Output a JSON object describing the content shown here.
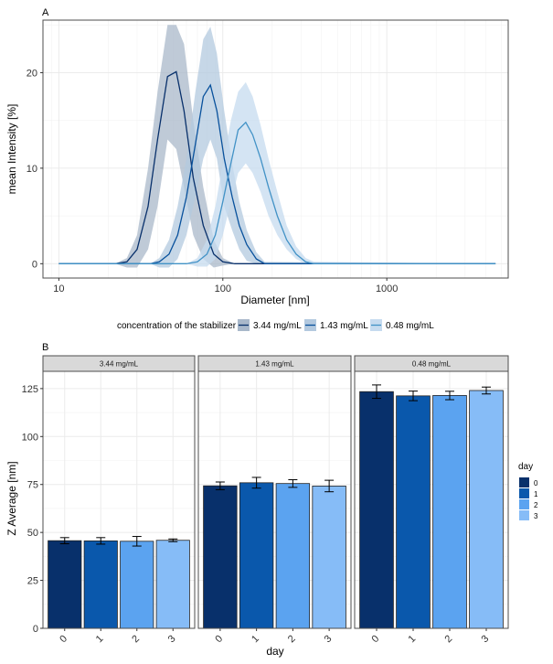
{
  "colors": {
    "dark": "#08306b",
    "mid": "#08519c",
    "light": "#4292c6",
    "lighter": "#6baed6",
    "lightest": "#9ecae1",
    "panel_border": "#4d4d4d",
    "grid": "#ebebeb",
    "strip_bg": "#d9d9d9"
  },
  "chart_data": [
    {
      "panel": "A",
      "type": "line",
      "x_scale": "log",
      "xlabel": "Diameter [nm]",
      "ylabel": "mean Intensity [%]",
      "xlim": [
        8,
        5500
      ],
      "ylim": [
        -1.5,
        25.5
      ],
      "x_ticks": [
        10,
        100,
        1000
      ],
      "x_tick_labels": [
        "10",
        "100",
        "1000"
      ],
      "y_ticks": [
        0,
        10,
        20
      ],
      "y_tick_labels": [
        "0",
        "10",
        "20"
      ],
      "grid": true,
      "legend_title": "concentration of the stabilizer C",
      "legend_position": "bottom",
      "series": [
        {
          "name": "3.44 mg/mL",
          "color": "#08306b",
          "fill": "#a9b8ca",
          "x": [
            10,
            22,
            26,
            30,
            35,
            40,
            46,
            52,
            58,
            66,
            76,
            88,
            100,
            118,
            4600
          ],
          "y": [
            0,
            0,
            0.2,
            1.5,
            6.0,
            13.0,
            19.6,
            20.1,
            16.0,
            9.0,
            4.0,
            1.0,
            0.2,
            0,
            0
          ],
          "lower": [
            0,
            0,
            -0.4,
            -0.4,
            1.5,
            6.0,
            13.0,
            12.0,
            8.0,
            3.0,
            0.5,
            -0.4,
            -0.2,
            0,
            0
          ],
          "upper": [
            0,
            0,
            0.6,
            3.0,
            10.0,
            18.0,
            25.0,
            25.0,
            23.0,
            15.0,
            8.0,
            2.5,
            0.6,
            0,
            0
          ]
        },
        {
          "name": "1.43 mg/mL",
          "color": "#08519c",
          "fill": "#b3c9df",
          "x": [
            10,
            36,
            41,
            47,
            53,
            60,
            68,
            76,
            84,
            92,
            102,
            114,
            126,
            140,
            160,
            180,
            4600
          ],
          "y": [
            0,
            0,
            0.2,
            1.0,
            3.0,
            7.0,
            12.5,
            17.5,
            18.7,
            16.0,
            11.0,
            7.0,
            4.0,
            2.0,
            0.5,
            0,
            0
          ],
          "lower": [
            0,
            0,
            -0.4,
            -0.4,
            0.5,
            3.0,
            7.0,
            11.0,
            13.0,
            11.0,
            6.0,
            3.5,
            1.5,
            0.3,
            0,
            0,
            0
          ],
          "upper": [
            0,
            0,
            0.6,
            2.5,
            6.0,
            11.0,
            18.0,
            23.5,
            24.8,
            22.0,
            16.0,
            10.5,
            6.5,
            3.5,
            1.2,
            0.2,
            0
          ]
        },
        {
          "name": "0.48 mg/mL",
          "color": "#4292c6",
          "fill": "#c6dbef",
          "x": [
            10,
            60,
            70,
            80,
            90,
            100,
            112,
            124,
            138,
            152,
            170,
            190,
            215,
            245,
            280,
            320,
            360,
            4600
          ],
          "y": [
            0,
            0,
            0.2,
            1.0,
            3.0,
            6.5,
            10.5,
            14.0,
            14.8,
            13.5,
            11.0,
            8.0,
            5.0,
            2.5,
            1.0,
            0.2,
            0,
            0
          ],
          "lower": [
            0,
            0,
            -0.3,
            -0.3,
            0.5,
            3.0,
            6.5,
            9.5,
            10.5,
            9.5,
            7.5,
            5.0,
            3.0,
            1.5,
            0.5,
            0,
            0,
            0
          ],
          "upper": [
            0,
            0,
            0.6,
            2.5,
            6.0,
            10.5,
            15.0,
            18.0,
            19.0,
            17.5,
            14.5,
            11.0,
            7.5,
            4.0,
            1.8,
            0.6,
            0.2,
            0
          ]
        }
      ]
    },
    {
      "panel": "B",
      "type": "bar",
      "xlabel": "day",
      "ylabel": "Z Average [nm]",
      "ylim": [
        0,
        134
      ],
      "y_ticks": [
        0,
        25,
        50,
        75,
        100,
        125
      ],
      "y_tick_labels": [
        "0",
        "25",
        "50",
        "75",
        "100",
        "125"
      ],
      "categories": [
        "0",
        "1",
        "2",
        "3"
      ],
      "legend_title": "day",
      "legend_position": "right",
      "legend_items": [
        "0",
        "1",
        "2",
        "3"
      ],
      "bar_colors": [
        "#08306b",
        "#0a58ac",
        "#5ba3f0",
        "#86bcf7"
      ],
      "facets": [
        {
          "label": "3.44 mg/mL",
          "values": [
            45.7,
            45.6,
            45.4,
            45.9
          ],
          "errors": [
            1.6,
            1.7,
            2.5,
            0.7
          ]
        },
        {
          "label": "1.43 mg/mL",
          "values": [
            74.3,
            75.9,
            75.5,
            74.2
          ],
          "errors": [
            2.0,
            2.8,
            2.0,
            3.0
          ]
        },
        {
          "label": "0.48 mg/mL",
          "values": [
            123.4,
            121.2,
            121.4,
            124.0
          ],
          "errors": [
            3.5,
            2.5,
            2.2,
            1.8
          ]
        }
      ],
      "grid": true
    }
  ]
}
